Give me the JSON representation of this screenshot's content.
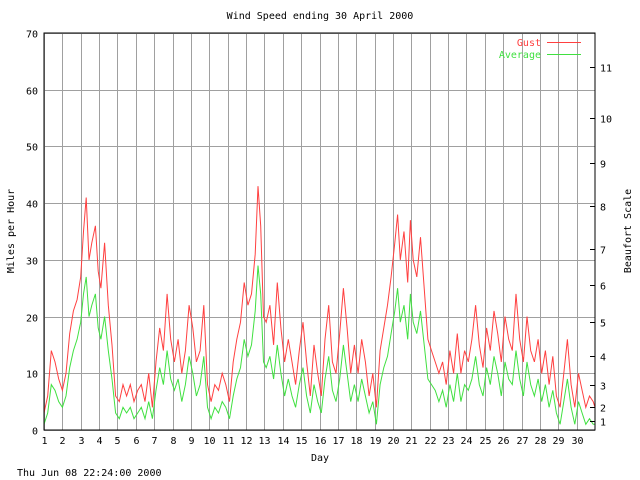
{
  "chart_data": {
    "type": "line",
    "title": "Wind Speed ending 30 April 2000",
    "xlabel": "Day",
    "ylabel": "Miles per Hour",
    "y2label": "Beaufort Scale",
    "footer": "Thu Jun 08 22:24:00 2000",
    "xlim": [
      1,
      31
    ],
    "ylim": [
      0,
      70
    ],
    "grid": true,
    "legend_position": "top-right",
    "x_ticks": [
      1,
      2,
      3,
      4,
      5,
      6,
      7,
      8,
      9,
      10,
      11,
      12,
      13,
      14,
      15,
      16,
      17,
      18,
      19,
      20,
      21,
      22,
      23,
      24,
      25,
      26,
      27,
      28,
      29,
      30
    ],
    "y_ticks": [
      0,
      10,
      20,
      30,
      40,
      50,
      60,
      70
    ],
    "beaufort_ticks": [
      {
        "label": "1",
        "mph": 1.5
      },
      {
        "label": "2",
        "mph": 4
      },
      {
        "label": "3",
        "mph": 8
      },
      {
        "label": "4",
        "mph": 13
      },
      {
        "label": "5",
        "mph": 19
      },
      {
        "label": "6",
        "mph": 25.5
      },
      {
        "label": "7",
        "mph": 32
      },
      {
        "label": "8",
        "mph": 39.5
      },
      {
        "label": "9",
        "mph": 47
      },
      {
        "label": "10",
        "mph": 55
      },
      {
        "label": "11",
        "mph": 64
      }
    ],
    "series": [
      {
        "name": "Gust",
        "color": "#ff4040",
        "points": [
          [
            1.0,
            3
          ],
          [
            1.2,
            6
          ],
          [
            1.4,
            14
          ],
          [
            1.6,
            12
          ],
          [
            1.8,
            9
          ],
          [
            2.0,
            7
          ],
          [
            2.2,
            10
          ],
          [
            2.4,
            17
          ],
          [
            2.6,
            21
          ],
          [
            2.8,
            23
          ],
          [
            3.0,
            27
          ],
          [
            3.15,
            35
          ],
          [
            3.3,
            41
          ],
          [
            3.45,
            30
          ],
          [
            3.6,
            33
          ],
          [
            3.8,
            36
          ],
          [
            3.95,
            28
          ],
          [
            4.1,
            25
          ],
          [
            4.3,
            33
          ],
          [
            4.5,
            22
          ],
          [
            4.7,
            15
          ],
          [
            4.9,
            6
          ],
          [
            5.1,
            5
          ],
          [
            5.3,
            8
          ],
          [
            5.5,
            6
          ],
          [
            5.7,
            8
          ],
          [
            5.9,
            5
          ],
          [
            6.1,
            7
          ],
          [
            6.3,
            8
          ],
          [
            6.5,
            5
          ],
          [
            6.7,
            10
          ],
          [
            6.9,
            4
          ],
          [
            7.1,
            12
          ],
          [
            7.3,
            18
          ],
          [
            7.5,
            14
          ],
          [
            7.7,
            24
          ],
          [
            7.9,
            16
          ],
          [
            8.1,
            12
          ],
          [
            8.3,
            16
          ],
          [
            8.5,
            10
          ],
          [
            8.7,
            14
          ],
          [
            8.9,
            22
          ],
          [
            9.1,
            18
          ],
          [
            9.3,
            12
          ],
          [
            9.5,
            14
          ],
          [
            9.7,
            22
          ],
          [
            9.9,
            8
          ],
          [
            10.1,
            5
          ],
          [
            10.3,
            8
          ],
          [
            10.5,
            7
          ],
          [
            10.7,
            10
          ],
          [
            10.9,
            8
          ],
          [
            11.1,
            5
          ],
          [
            11.3,
            12
          ],
          [
            11.5,
            16
          ],
          [
            11.7,
            19
          ],
          [
            11.9,
            26
          ],
          [
            12.1,
            22
          ],
          [
            12.3,
            24
          ],
          [
            12.5,
            31
          ],
          [
            12.65,
            43
          ],
          [
            12.8,
            36
          ],
          [
            12.95,
            20
          ],
          [
            13.1,
            19
          ],
          [
            13.3,
            22
          ],
          [
            13.5,
            15
          ],
          [
            13.7,
            26
          ],
          [
            13.9,
            18
          ],
          [
            14.1,
            12
          ],
          [
            14.3,
            16
          ],
          [
            14.5,
            12
          ],
          [
            14.7,
            8
          ],
          [
            14.9,
            14
          ],
          [
            15.1,
            19
          ],
          [
            15.3,
            12
          ],
          [
            15.5,
            6
          ],
          [
            15.7,
            15
          ],
          [
            15.9,
            10
          ],
          [
            16.1,
            6
          ],
          [
            16.3,
            16
          ],
          [
            16.5,
            22
          ],
          [
            16.7,
            12
          ],
          [
            16.9,
            10
          ],
          [
            17.1,
            17
          ],
          [
            17.3,
            25
          ],
          [
            17.5,
            18
          ],
          [
            17.7,
            10
          ],
          [
            17.9,
            15
          ],
          [
            18.1,
            10
          ],
          [
            18.3,
            16
          ],
          [
            18.5,
            12
          ],
          [
            18.7,
            6
          ],
          [
            18.9,
            10
          ],
          [
            19.1,
            4
          ],
          [
            19.3,
            14
          ],
          [
            19.5,
            18
          ],
          [
            19.7,
            22
          ],
          [
            19.9,
            27
          ],
          [
            20.1,
            33
          ],
          [
            20.25,
            38
          ],
          [
            20.4,
            30
          ],
          [
            20.6,
            35
          ],
          [
            20.8,
            26
          ],
          [
            20.95,
            37
          ],
          [
            21.1,
            30
          ],
          [
            21.3,
            27
          ],
          [
            21.5,
            34
          ],
          [
            21.7,
            25
          ],
          [
            21.9,
            16
          ],
          [
            22.1,
            14
          ],
          [
            22.3,
            12
          ],
          [
            22.5,
            10
          ],
          [
            22.7,
            12
          ],
          [
            22.9,
            8
          ],
          [
            23.1,
            14
          ],
          [
            23.3,
            10
          ],
          [
            23.5,
            17
          ],
          [
            23.7,
            10
          ],
          [
            23.9,
            14
          ],
          [
            24.1,
            12
          ],
          [
            24.3,
            16
          ],
          [
            24.5,
            22
          ],
          [
            24.7,
            15
          ],
          [
            24.9,
            11
          ],
          [
            25.1,
            18
          ],
          [
            25.3,
            14
          ],
          [
            25.5,
            21
          ],
          [
            25.7,
            17
          ],
          [
            25.9,
            12
          ],
          [
            26.1,
            20
          ],
          [
            26.3,
            16
          ],
          [
            26.5,
            14
          ],
          [
            26.7,
            24
          ],
          [
            26.9,
            16
          ],
          [
            27.1,
            12
          ],
          [
            27.3,
            20
          ],
          [
            27.5,
            14
          ],
          [
            27.7,
            12
          ],
          [
            27.9,
            16
          ],
          [
            28.1,
            10
          ],
          [
            28.3,
            14
          ],
          [
            28.5,
            8
          ],
          [
            28.7,
            13
          ],
          [
            28.9,
            6
          ],
          [
            29.1,
            4
          ],
          [
            29.3,
            10
          ],
          [
            29.5,
            16
          ],
          [
            29.7,
            8
          ],
          [
            29.9,
            4
          ],
          [
            30.1,
            10
          ],
          [
            30.3,
            7
          ],
          [
            30.5,
            4
          ],
          [
            30.7,
            6
          ],
          [
            30.9,
            5
          ],
          [
            31.0,
            4
          ]
        ]
      },
      {
        "name": "Average",
        "color": "#40e040",
        "points": [
          [
            1.0,
            1
          ],
          [
            1.2,
            3
          ],
          [
            1.4,
            8
          ],
          [
            1.6,
            7
          ],
          [
            1.8,
            5
          ],
          [
            2.0,
            4
          ],
          [
            2.2,
            6
          ],
          [
            2.4,
            11
          ],
          [
            2.6,
            14
          ],
          [
            2.8,
            16
          ],
          [
            3.0,
            19
          ],
          [
            3.15,
            24
          ],
          [
            3.3,
            27
          ],
          [
            3.45,
            20
          ],
          [
            3.6,
            22
          ],
          [
            3.8,
            24
          ],
          [
            3.95,
            18
          ],
          [
            4.1,
            16
          ],
          [
            4.3,
            20
          ],
          [
            4.5,
            14
          ],
          [
            4.7,
            9
          ],
          [
            4.9,
            3
          ],
          [
            5.1,
            2
          ],
          [
            5.3,
            4
          ],
          [
            5.5,
            3
          ],
          [
            5.7,
            4
          ],
          [
            5.9,
            2
          ],
          [
            6.1,
            3
          ],
          [
            6.3,
            4
          ],
          [
            6.5,
            2
          ],
          [
            6.7,
            5
          ],
          [
            6.9,
            2
          ],
          [
            7.1,
            7
          ],
          [
            7.3,
            11
          ],
          [
            7.5,
            8
          ],
          [
            7.7,
            14
          ],
          [
            7.9,
            9
          ],
          [
            8.1,
            7
          ],
          [
            8.3,
            9
          ],
          [
            8.5,
            5
          ],
          [
            8.7,
            8
          ],
          [
            8.9,
            13
          ],
          [
            9.1,
            10
          ],
          [
            9.3,
            6
          ],
          [
            9.5,
            8
          ],
          [
            9.7,
            13
          ],
          [
            9.9,
            4
          ],
          [
            10.1,
            2
          ],
          [
            10.3,
            4
          ],
          [
            10.5,
            3
          ],
          [
            10.7,
            5
          ],
          [
            10.9,
            4
          ],
          [
            11.1,
            2
          ],
          [
            11.3,
            6
          ],
          [
            11.5,
            9
          ],
          [
            11.7,
            11
          ],
          [
            11.9,
            16
          ],
          [
            12.1,
            13
          ],
          [
            12.3,
            15
          ],
          [
            12.5,
            21
          ],
          [
            12.65,
            29
          ],
          [
            12.8,
            24
          ],
          [
            12.95,
            12
          ],
          [
            13.1,
            11
          ],
          [
            13.3,
            13
          ],
          [
            13.5,
            9
          ],
          [
            13.7,
            15
          ],
          [
            13.9,
            10
          ],
          [
            14.1,
            6
          ],
          [
            14.3,
            9
          ],
          [
            14.5,
            6
          ],
          [
            14.7,
            4
          ],
          [
            14.9,
            8
          ],
          [
            15.1,
            11
          ],
          [
            15.3,
            6
          ],
          [
            15.5,
            3
          ],
          [
            15.7,
            8
          ],
          [
            15.9,
            5
          ],
          [
            16.1,
            3
          ],
          [
            16.3,
            9
          ],
          [
            16.5,
            13
          ],
          [
            16.7,
            7
          ],
          [
            16.9,
            5
          ],
          [
            17.1,
            9
          ],
          [
            17.3,
            15
          ],
          [
            17.5,
            10
          ],
          [
            17.7,
            5
          ],
          [
            17.9,
            8
          ],
          [
            18.1,
            5
          ],
          [
            18.3,
            9
          ],
          [
            18.5,
            6
          ],
          [
            18.7,
            3
          ],
          [
            18.9,
            5
          ],
          [
            19.1,
            1
          ],
          [
            19.3,
            8
          ],
          [
            19.5,
            11
          ],
          [
            19.7,
            13
          ],
          [
            19.9,
            17
          ],
          [
            20.1,
            21
          ],
          [
            20.25,
            25
          ],
          [
            20.4,
            19
          ],
          [
            20.6,
            22
          ],
          [
            20.8,
            16
          ],
          [
            20.95,
            24
          ],
          [
            21.1,
            19
          ],
          [
            21.3,
            17
          ],
          [
            21.5,
            21
          ],
          [
            21.7,
            15
          ],
          [
            21.9,
            9
          ],
          [
            22.1,
            8
          ],
          [
            22.3,
            7
          ],
          [
            22.5,
            5
          ],
          [
            22.7,
            7
          ],
          [
            22.9,
            4
          ],
          [
            23.1,
            8
          ],
          [
            23.3,
            5
          ],
          [
            23.5,
            10
          ],
          [
            23.7,
            5
          ],
          [
            23.9,
            8
          ],
          [
            24.1,
            7
          ],
          [
            24.3,
            9
          ],
          [
            24.5,
            13
          ],
          [
            24.7,
            8
          ],
          [
            24.9,
            6
          ],
          [
            25.1,
            11
          ],
          [
            25.3,
            8
          ],
          [
            25.5,
            13
          ],
          [
            25.7,
            10
          ],
          [
            25.9,
            6
          ],
          [
            26.1,
            12
          ],
          [
            26.3,
            9
          ],
          [
            26.5,
            8
          ],
          [
            26.7,
            14
          ],
          [
            26.9,
            9
          ],
          [
            27.1,
            6
          ],
          [
            27.3,
            12
          ],
          [
            27.5,
            8
          ],
          [
            27.7,
            6
          ],
          [
            27.9,
            9
          ],
          [
            28.1,
            5
          ],
          [
            28.3,
            8
          ],
          [
            28.5,
            4
          ],
          [
            28.7,
            7
          ],
          [
            28.9,
            3
          ],
          [
            29.1,
            1
          ],
          [
            29.3,
            5
          ],
          [
            29.5,
            9
          ],
          [
            29.7,
            4
          ],
          [
            29.9,
            1
          ],
          [
            30.1,
            5
          ],
          [
            30.3,
            3
          ],
          [
            30.5,
            1
          ],
          [
            30.7,
            2
          ],
          [
            30.9,
            1
          ],
          [
            31.0,
            1
          ]
        ]
      }
    ]
  }
}
